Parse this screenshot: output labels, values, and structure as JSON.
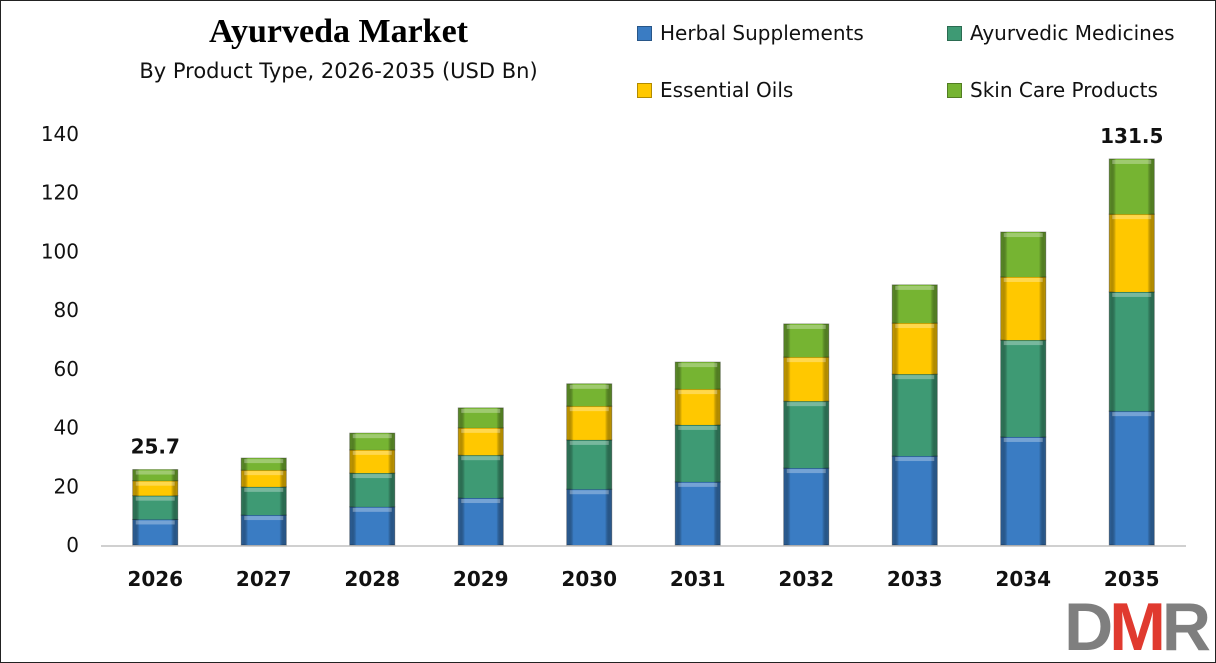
{
  "chart_data": {
    "type": "bar",
    "stacked": true,
    "title": "Ayurveda Market",
    "subtitle": "By Product Type, 2026-2035 (USD Bn)",
    "categories": [
      "2026",
      "2027",
      "2028",
      "2029",
      "2030",
      "2031",
      "2032",
      "2033",
      "2034",
      "2035"
    ],
    "series": [
      {
        "name": "Herbal Supplements",
        "color": "#3A7CC3",
        "values": [
          8.7,
          10.2,
          13.0,
          16.0,
          19.0,
          21.5,
          26.2,
          30.3,
          36.8,
          45.6
        ]
      },
      {
        "name": "Ayurvedic Medicines",
        "color": "#3E9A74",
        "values": [
          8.1,
          9.6,
          11.5,
          14.6,
          16.8,
          19.4,
          22.8,
          27.9,
          33.0,
          40.6
        ]
      },
      {
        "name": "Essential Oils",
        "color": "#FFC800",
        "values": [
          5.1,
          5.7,
          7.9,
          9.3,
          11.5,
          12.2,
          15.0,
          17.4,
          21.5,
          26.5
        ]
      },
      {
        "name": "Skin Care Products",
        "color": "#76B432",
        "values": [
          3.8,
          4.1,
          5.7,
          6.8,
          7.6,
          9.2,
          11.3,
          13.0,
          15.3,
          18.8
        ]
      }
    ],
    "data_labels": [
      {
        "category": "2026",
        "text": "25.7"
      },
      {
        "category": "2035",
        "text": "131.5"
      }
    ],
    "ylim": [
      0,
      140
    ],
    "yticks": [
      "0",
      "20",
      "40",
      "60",
      "80",
      "100",
      "120",
      "140"
    ],
    "grid": false,
    "legend_position": "top-right"
  },
  "logo": {
    "text": "DMR",
    "colors": [
      "#7f7f7f",
      "#e03a2f",
      "#7f7f7f"
    ]
  }
}
